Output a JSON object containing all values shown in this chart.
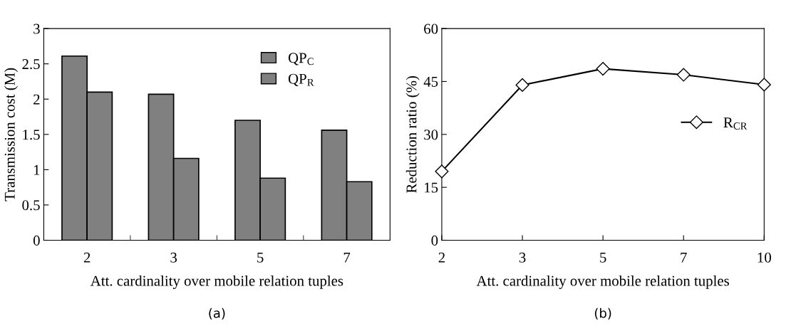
{
  "chart_data": [
    {
      "type": "bar",
      "xlabel": "Att. cardinality over mobile relation tuples",
      "ylabel": "Transmission cost (M)",
      "categories": [
        "2",
        "3",
        "5",
        "7"
      ],
      "series": [
        {
          "name": "QP$_{C}$",
          "color": "#808080",
          "values": [
            2.61,
            2.07,
            1.7,
            1.56
          ]
        },
        {
          "name": "QP$_{R}$",
          "color": "#808080",
          "values": [
            2.1,
            1.16,
            0.88,
            0.83
          ]
        }
      ],
      "ylim": [
        0,
        3
      ],
      "yticks": [
        0,
        0.5,
        1,
        1.5,
        2,
        2.5,
        3
      ],
      "grid": false,
      "legend": "top right",
      "annotations": [
        "(a)"
      ]
    },
    {
      "type": "line",
      "xlabel": "Att. cardinality over mobile relation tuples",
      "ylabel": "Reduction ratio (%)",
      "categories": [
        "2",
        "3",
        "5",
        "7",
        "10"
      ],
      "series": [
        {
          "name": "R$_{CR}$",
          "color": "#000000",
          "values": [
            19.5,
            44.0,
            48.6,
            46.9,
            44.1
          ]
        }
      ],
      "ylim": [
        0,
        60
      ],
      "yticks": [
        0,
        15,
        30,
        45,
        60
      ],
      "grid": false,
      "legend": "right",
      "marker": "diamond",
      "line_style": "solid",
      "annotations": [
        "(b)"
      ]
    }
  ]
}
